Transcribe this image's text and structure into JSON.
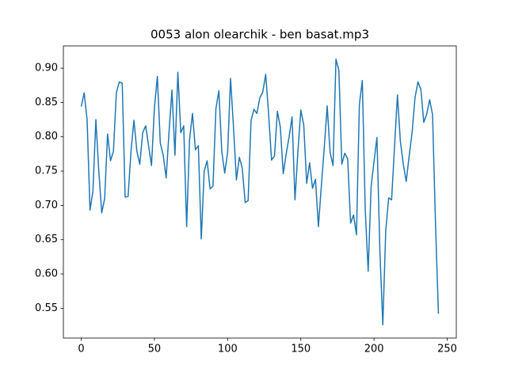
{
  "chart_data": {
    "type": "line",
    "title": "0053 alon olearchik - ben basat.mp3",
    "x": [
      0,
      2,
      4,
      6,
      8,
      10,
      12,
      14,
      16,
      18,
      20,
      22,
      24,
      26,
      28,
      30,
      32,
      34,
      36,
      38,
      40,
      42,
      44,
      46,
      48,
      50,
      52,
      54,
      56,
      58,
      60,
      62,
      64,
      66,
      68,
      70,
      72,
      74,
      76,
      78,
      80,
      82,
      84,
      86,
      88,
      90,
      92,
      94,
      96,
      98,
      100,
      102,
      104,
      106,
      108,
      110,
      112,
      114,
      116,
      118,
      120,
      122,
      124,
      126,
      128,
      130,
      132,
      134,
      136,
      138,
      140,
      142,
      144,
      146,
      148,
      150,
      152,
      154,
      156,
      158,
      160,
      162,
      164,
      166,
      168,
      170,
      172,
      174,
      176,
      178,
      180,
      182,
      184,
      186,
      188,
      190,
      192,
      194,
      196,
      198,
      200,
      202,
      204,
      206,
      208,
      210,
      212,
      214,
      216,
      218,
      220,
      222,
      224,
      226,
      228,
      230,
      232,
      234,
      236,
      238,
      240,
      242,
      244
    ],
    "series": [
      {
        "color": "#1f77b4",
        "values": [
          0.844,
          0.864,
          0.825,
          0.693,
          0.721,
          0.825,
          0.75,
          0.689,
          0.71,
          0.804,
          0.765,
          0.779,
          0.864,
          0.88,
          0.878,
          0.712,
          0.713,
          0.779,
          0.824,
          0.779,
          0.76,
          0.806,
          0.816,
          0.787,
          0.758,
          0.842,
          0.888,
          0.791,
          0.773,
          0.74,
          0.808,
          0.868,
          0.773,
          0.894,
          0.806,
          0.816,
          0.669,
          0.796,
          0.834,
          0.781,
          0.787,
          0.651,
          0.75,
          0.765,
          0.724,
          0.728,
          0.841,
          0.867,
          0.779,
          0.747,
          0.777,
          0.885,
          0.814,
          0.737,
          0.77,
          0.754,
          0.704,
          0.707,
          0.824,
          0.84,
          0.834,
          0.857,
          0.865,
          0.891,
          0.833,
          0.766,
          0.772,
          0.837,
          0.814,
          0.746,
          0.775,
          0.8,
          0.829,
          0.708,
          0.778,
          0.839,
          0.817,
          0.732,
          0.762,
          0.725,
          0.738,
          0.669,
          0.728,
          0.784,
          0.845,
          0.777,
          0.758,
          0.913,
          0.897,
          0.76,
          0.776,
          0.768,
          0.674,
          0.686,
          0.657,
          0.847,
          0.882,
          0.693,
          0.604,
          0.727,
          0.764,
          0.799,
          0.634,
          0.526,
          0.663,
          0.711,
          0.708,
          0.785,
          0.861,
          0.793,
          0.76,
          0.735,
          0.772,
          0.806,
          0.857,
          0.88,
          0.869,
          0.821,
          0.833,
          0.854,
          0.832,
          0.672,
          0.542
        ]
      }
    ],
    "xlim": [
      -12.2,
      256.2
    ],
    "ylim": [
      0.5066,
      0.9324
    ],
    "xticks": [
      0,
      50,
      100,
      150,
      200,
      250
    ],
    "yticks": [
      0.55,
      {
        "value": 0.6,
        "label": "0.60"
      },
      0.65,
      {
        "value": 0.7,
        "label": "0.70"
      },
      0.75,
      {
        "value": 0.8,
        "label": "0.80"
      },
      0.85,
      {
        "value": 0.9,
        "label": "0.90"
      }
    ],
    "grid": false
  }
}
